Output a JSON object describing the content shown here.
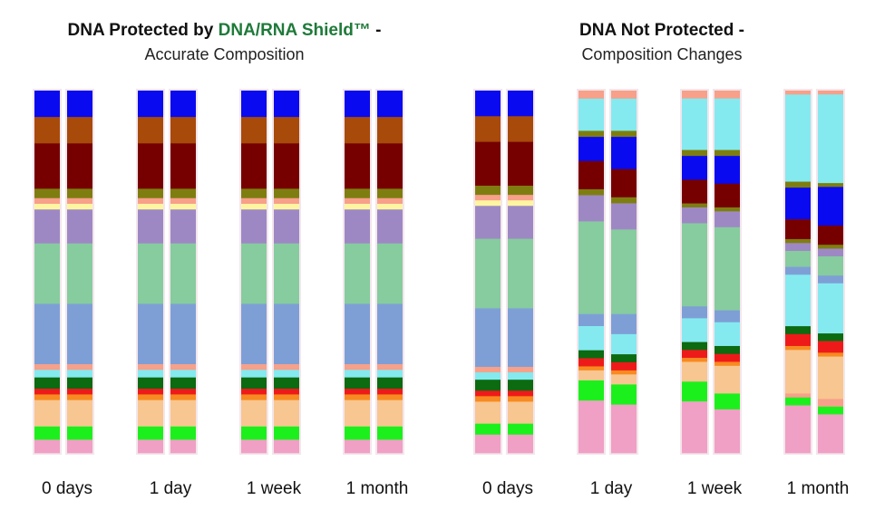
{
  "titles": {
    "left": {
      "part1": "DNA Protected by ",
      "brand": "DNA/RNA Shield™",
      "part2": " -",
      "subtitle": "Accurate Composition"
    },
    "right": {
      "main": "DNA Not Protected -",
      "subtitle": "Composition Changes"
    }
  },
  "colors": {
    "brand_green": "#1f7a3a",
    "blue": "#0a0af0",
    "brown": "#a84a0a",
    "maroon": "#760000",
    "olive": "#7e7e10",
    "salmon": "#f7a08a",
    "yellow": "#fff5a0",
    "purple": "#9e88c4",
    "green_light": "#86cc9e",
    "blue_light": "#7e9fd6",
    "cyan": "#84eaf0",
    "dark_green": "#0c6a10",
    "red": "#ee1a1a",
    "orange": "#f78a20",
    "peach": "#f8c690",
    "lime": "#1cf01c",
    "pink": "#f0a0c4"
  },
  "chart_data": [
    {
      "type": "bar",
      "stacked": true,
      "panel": "DNA Protected by DNA/RNA Shield™ - Accurate Composition",
      "categories": [
        "0 days",
        "1 day",
        "1 week",
        "1 month"
      ],
      "replicates_per_category": 2,
      "segments": [
        [
          "blue",
          7
        ],
        [
          "brown",
          7
        ],
        [
          "maroon",
          12
        ],
        [
          "olive",
          2.5
        ],
        [
          "salmon",
          1.5
        ],
        [
          "yellow",
          1.5
        ],
        [
          "purple",
          9
        ],
        [
          "green_light",
          16
        ],
        [
          "blue_light",
          16
        ],
        [
          "salmon",
          1.5
        ],
        [
          "cyan",
          2
        ],
        [
          "dark_green",
          3
        ],
        [
          "red",
          1.5
        ],
        [
          "orange",
          1.5
        ],
        [
          "peach",
          7
        ],
        [
          "lime",
          3.5
        ],
        [
          "pink",
          3.5
        ]
      ]
    },
    {
      "type": "bar",
      "stacked": true,
      "panel": "DNA Not Protected - Composition Changes",
      "categories": [
        "0 days",
        "1 day",
        "1 week",
        "1 month"
      ],
      "replicates_per_category": 2,
      "bars": [
        [
          [
            "blue",
            7
          ],
          [
            "brown",
            7
          ],
          [
            "maroon",
            12
          ],
          [
            "olive",
            2.5
          ],
          [
            "salmon",
            1.5
          ],
          [
            "yellow",
            1.5
          ],
          [
            "purple",
            9
          ],
          [
            "green_light",
            19
          ],
          [
            "blue_light",
            16
          ],
          [
            "salmon",
            1.5
          ],
          [
            "cyan",
            2
          ],
          [
            "dark_green",
            3
          ],
          [
            "red",
            1.5
          ],
          [
            "orange",
            1.5
          ],
          [
            "peach",
            6
          ],
          [
            "lime",
            3
          ],
          [
            "pink",
            5
          ]
        ],
        [
          [
            "blue",
            7
          ],
          [
            "brown",
            7
          ],
          [
            "maroon",
            12
          ],
          [
            "olive",
            2.5
          ],
          [
            "salmon",
            1.5
          ],
          [
            "yellow",
            1.5
          ],
          [
            "purple",
            9
          ],
          [
            "green_light",
            19
          ],
          [
            "blue_light",
            16
          ],
          [
            "salmon",
            1.5
          ],
          [
            "cyan",
            2
          ],
          [
            "dark_green",
            3
          ],
          [
            "red",
            1.5
          ],
          [
            "orange",
            1.5
          ],
          [
            "peach",
            6
          ],
          [
            "lime",
            3
          ],
          [
            "pink",
            5
          ]
        ],
        [
          [
            "salmon",
            2
          ],
          [
            "cyan",
            8
          ],
          [
            "olive",
            1.5
          ],
          [
            "blue",
            6
          ],
          [
            "maroon",
            7
          ],
          [
            "olive",
            1.5
          ],
          [
            "purple",
            6.5
          ],
          [
            "green_light",
            23
          ],
          [
            "blue_light",
            3
          ],
          [
            "cyan",
            6
          ],
          [
            "dark_green",
            2
          ],
          [
            "red",
            2
          ],
          [
            "orange",
            1
          ],
          [
            "peach",
            2.5
          ],
          [
            "lime",
            5
          ],
          [
            "pink",
            13
          ]
        ],
        [
          [
            "salmon",
            2
          ],
          [
            "cyan",
            8
          ],
          [
            "olive",
            1.5
          ],
          [
            "blue",
            8
          ],
          [
            "maroon",
            7
          ],
          [
            "olive",
            1.5
          ],
          [
            "purple",
            6.5
          ],
          [
            "green_light",
            21
          ],
          [
            "blue_light",
            5
          ],
          [
            "cyan",
            5
          ],
          [
            "dark_green",
            2
          ],
          [
            "red",
            2
          ],
          [
            "orange",
            1
          ],
          [
            "peach",
            2.5
          ],
          [
            "lime",
            5
          ],
          [
            "pink",
            12
          ]
        ],
        [
          [
            "salmon",
            2
          ],
          [
            "cyan",
            13
          ],
          [
            "olive",
            1.5
          ],
          [
            "blue",
            6
          ],
          [
            "maroon",
            6
          ],
          [
            "olive",
            1
          ],
          [
            "purple",
            4
          ],
          [
            "green_light",
            21
          ],
          [
            "blue_light",
            3
          ],
          [
            "cyan",
            6
          ],
          [
            "dark_green",
            2
          ],
          [
            "red",
            2
          ],
          [
            "orange",
            1
          ],
          [
            "peach",
            5
          ],
          [
            "lime",
            5
          ],
          [
            "pink",
            13
          ]
        ],
        [
          [
            "salmon",
            2
          ],
          [
            "cyan",
            13
          ],
          [
            "olive",
            1.5
          ],
          [
            "blue",
            7
          ],
          [
            "maroon",
            6
          ],
          [
            "olive",
            1
          ],
          [
            "purple",
            4
          ],
          [
            "green_light",
            21
          ],
          [
            "blue_light",
            3
          ],
          [
            "cyan",
            6
          ],
          [
            "dark_green",
            2
          ],
          [
            "red",
            2
          ],
          [
            "orange",
            1
          ],
          [
            "peach",
            7
          ],
          [
            "lime",
            4
          ],
          [
            "pink",
            11
          ]
        ],
        [
          [
            "salmon",
            1
          ],
          [
            "cyan",
            22
          ],
          [
            "olive",
            1.5
          ],
          [
            "blue",
            8
          ],
          [
            "maroon",
            5
          ],
          [
            "olive",
            1
          ],
          [
            "purple",
            2
          ],
          [
            "green_light",
            4
          ],
          [
            "blue_light",
            2
          ],
          [
            "cyan",
            13
          ],
          [
            "dark_green",
            2
          ],
          [
            "red",
            3
          ],
          [
            "orange",
            1
          ],
          [
            "peach",
            11
          ],
          [
            "salmon",
            1
          ],
          [
            "lime",
            2
          ],
          [
            "pink",
            12
          ]
        ],
        [
          [
            "salmon",
            1
          ],
          [
            "cyan",
            23
          ],
          [
            "olive",
            1
          ],
          [
            "blue",
            10
          ],
          [
            "maroon",
            5
          ],
          [
            "olive",
            1
          ],
          [
            "purple",
            2
          ],
          [
            "green_light",
            5
          ],
          [
            "blue_light",
            2
          ],
          [
            "cyan",
            13
          ],
          [
            "dark_green",
            2
          ],
          [
            "red",
            3
          ],
          [
            "orange",
            1
          ],
          [
            "peach",
            11
          ],
          [
            "salmon",
            2
          ],
          [
            "lime",
            2
          ],
          [
            "pink",
            10
          ]
        ]
      ]
    }
  ]
}
